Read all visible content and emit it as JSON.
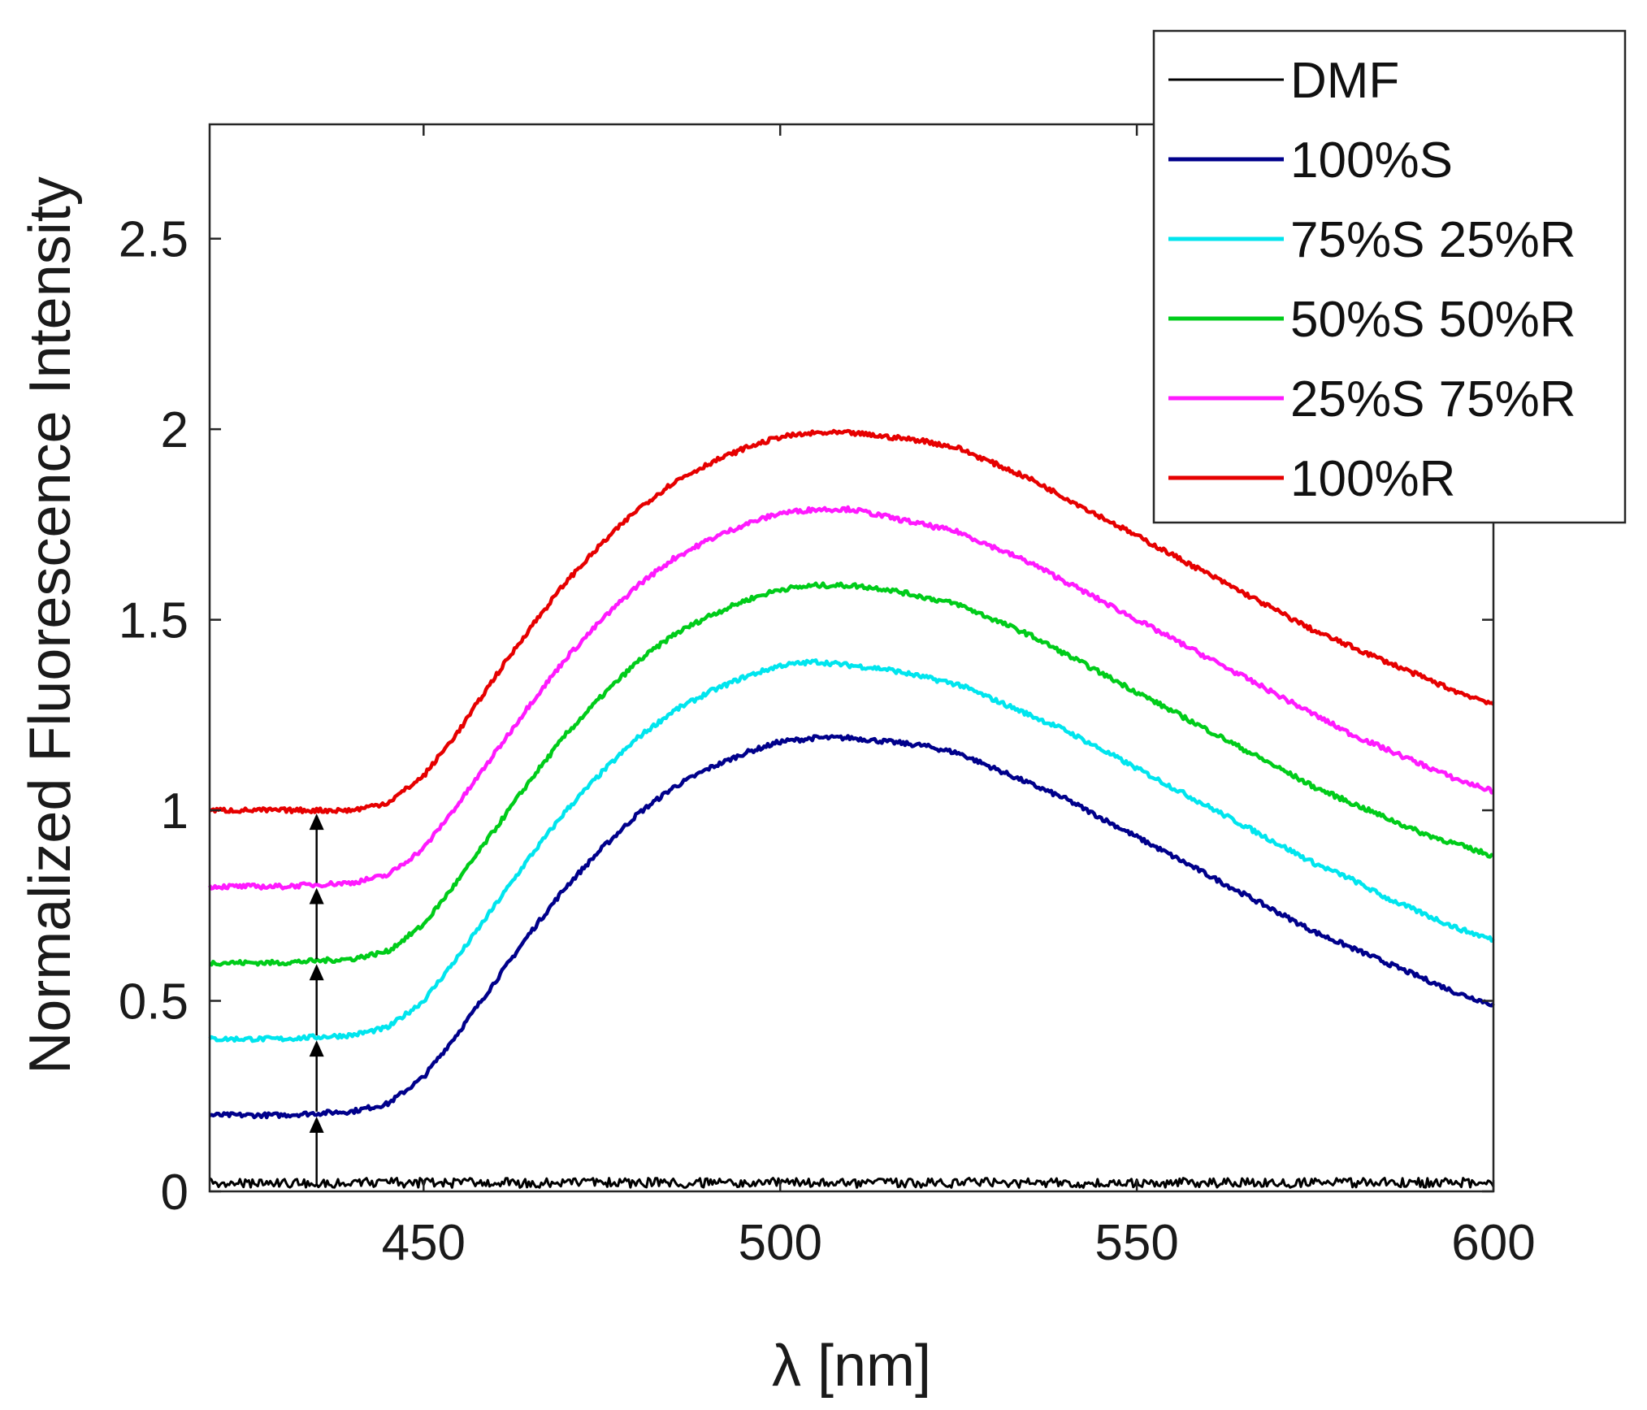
{
  "chart_data": {
    "type": "line",
    "title": "",
    "xlabel": "λ [nm]",
    "ylabel": "Normalized Fluorescence Intensity",
    "xlim": [
      420,
      600
    ],
    "ylim": [
      0,
      2.8
    ],
    "x_ticks": [
      450,
      500,
      550,
      600
    ],
    "y_ticks": [
      0,
      0.5,
      1,
      1.5,
      2,
      2.5
    ],
    "x_tick_labels": [
      "450",
      "500",
      "550",
      "600"
    ],
    "y_tick_labels": [
      "0",
      "0.5",
      "1",
      "1.5",
      "2",
      "2.5"
    ],
    "grid": false,
    "legend_position": "top-right",
    "x": [
      420,
      430,
      440,
      445,
      450,
      455,
      460,
      465,
      470,
      475,
      480,
      485,
      490,
      495,
      500,
      505,
      510,
      515,
      520,
      525,
      530,
      535,
      540,
      545,
      550,
      555,
      560,
      565,
      570,
      575,
      580,
      585,
      590,
      595,
      600
    ],
    "series": [
      {
        "name": "DMF",
        "color": "#000000",
        "values": [
          0.01,
          0.01,
          0.01,
          0.01,
          0.01,
          0.01,
          0.01,
          0.01,
          0.01,
          0.01,
          0.01,
          0.01,
          0.01,
          0.01,
          0.01,
          0.01,
          0.01,
          0.01,
          0.01,
          0.01,
          0.01,
          0.01,
          0.01,
          0.01,
          0.01,
          0.01,
          0.01,
          0.01,
          0.01,
          0.01,
          0.01,
          0.01,
          0.01,
          0.01,
          0.01
        ]
      },
      {
        "name": "100%S",
        "color": "#00008b",
        "values": [
          0.2,
          0.2,
          0.21,
          0.23,
          0.3,
          0.42,
          0.55,
          0.68,
          0.8,
          0.9,
          0.99,
          1.06,
          1.11,
          1.15,
          1.18,
          1.19,
          1.19,
          1.18,
          1.17,
          1.15,
          1.11,
          1.07,
          1.03,
          0.98,
          0.93,
          0.88,
          0.83,
          0.78,
          0.73,
          0.68,
          0.64,
          0.6,
          0.56,
          0.52,
          0.49
        ]
      },
      {
        "name": "75%S 25%R",
        "color": "#00e5ee",
        "values": [
          0.4,
          0.4,
          0.41,
          0.43,
          0.5,
          0.62,
          0.75,
          0.88,
          1.0,
          1.1,
          1.19,
          1.26,
          1.31,
          1.35,
          1.38,
          1.39,
          1.38,
          1.37,
          1.35,
          1.33,
          1.29,
          1.25,
          1.21,
          1.16,
          1.11,
          1.06,
          1.01,
          0.96,
          0.91,
          0.86,
          0.82,
          0.77,
          0.73,
          0.69,
          0.66
        ]
      },
      {
        "name": "50%S 50%R",
        "color": "#00cc1a",
        "values": [
          0.6,
          0.6,
          0.61,
          0.63,
          0.7,
          0.82,
          0.95,
          1.08,
          1.2,
          1.3,
          1.39,
          1.46,
          1.51,
          1.55,
          1.58,
          1.59,
          1.59,
          1.58,
          1.56,
          1.54,
          1.5,
          1.46,
          1.41,
          1.36,
          1.31,
          1.26,
          1.21,
          1.16,
          1.11,
          1.06,
          1.02,
          0.98,
          0.94,
          0.91,
          0.88
        ]
      },
      {
        "name": "25%S 75%R",
        "color": "#ff1aff",
        "values": [
          0.8,
          0.8,
          0.81,
          0.83,
          0.9,
          1.02,
          1.15,
          1.28,
          1.4,
          1.5,
          1.59,
          1.66,
          1.71,
          1.75,
          1.78,
          1.79,
          1.79,
          1.77,
          1.75,
          1.73,
          1.69,
          1.65,
          1.6,
          1.55,
          1.5,
          1.45,
          1.4,
          1.35,
          1.3,
          1.25,
          1.2,
          1.16,
          1.12,
          1.08,
          1.05
        ]
      },
      {
        "name": "100%R",
        "color": "#e60000",
        "values": [
          1.0,
          1.0,
          1.0,
          1.02,
          1.09,
          1.21,
          1.35,
          1.48,
          1.6,
          1.7,
          1.79,
          1.86,
          1.91,
          1.95,
          1.98,
          1.99,
          1.99,
          1.98,
          1.97,
          1.95,
          1.91,
          1.87,
          1.82,
          1.77,
          1.72,
          1.67,
          1.62,
          1.57,
          1.52,
          1.47,
          1.43,
          1.39,
          1.35,
          1.31,
          1.28
        ]
      }
    ],
    "annotations": {
      "arrow_x": 435
    }
  }
}
